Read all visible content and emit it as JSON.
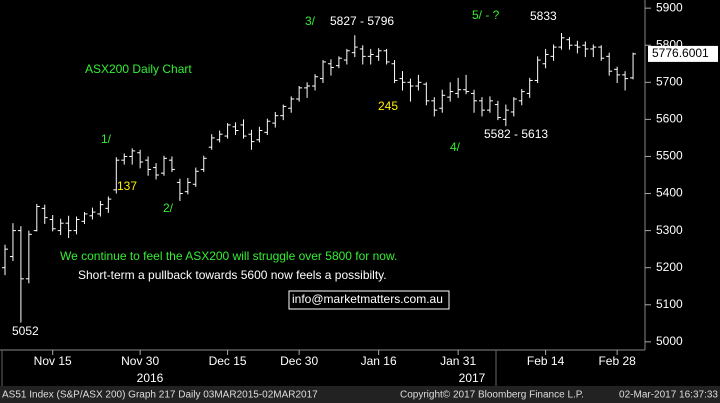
{
  "chart_data": {
    "type": "ohlc",
    "categories": [
      null,
      null,
      null,
      null,
      null,
      null,
      "Nov 15",
      null,
      null,
      null,
      null,
      null,
      null,
      null,
      null,
      null,
      null,
      "Nov 30",
      null,
      null,
      null,
      null,
      null,
      null,
      null,
      null,
      null,
      null,
      "Dec 15",
      null,
      null,
      null,
      null,
      null,
      null,
      null,
      null,
      "Dec 30",
      null,
      null,
      null,
      null,
      null,
      null,
      null,
      null,
      null,
      "Jan 16",
      null,
      null,
      null,
      null,
      null,
      null,
      null,
      null,
      null,
      "Jan 31",
      null,
      null,
      null,
      null,
      null,
      null,
      null,
      null,
      null,
      null,
      "Feb 14",
      null,
      null,
      null,
      null,
      null,
      null,
      null,
      null,
      "Feb 28",
      null,
      null
    ],
    "year_labels": [
      "2016",
      "2017"
    ],
    "open": [
      5200,
      5230,
      5300,
      5170,
      5300,
      5360,
      5330,
      5300,
      5320,
      5300,
      5325,
      5340,
      5345,
      5360,
      5410,
      5490,
      5500,
      5510,
      5490,
      5470,
      5455,
      5490,
      5430,
      5405,
      5425,
      5465,
      5525,
      5545,
      5555,
      5580,
      5585,
      5560,
      5545,
      5565,
      5590,
      5610,
      5630,
      5655,
      5685,
      5690,
      5710,
      5750,
      5745,
      5760,
      5780,
      5790,
      5770,
      5770,
      5785,
      5750,
      5710,
      5700,
      5690,
      5695,
      5650,
      5630,
      5660,
      5670,
      5680,
      5670,
      5650,
      5625,
      5640,
      5600,
      5620,
      5650,
      5670,
      5705,
      5750,
      5770,
      5795,
      5815,
      5800,
      5800,
      5790,
      5795,
      5770,
      5735,
      5720,
      5712
    ],
    "high": [
      5262,
      5320,
      5312,
      5300,
      5372,
      5370,
      5342,
      5332,
      5340,
      5338,
      5350,
      5362,
      5380,
      5392,
      5498,
      5508,
      5522,
      5518,
      5500,
      5482,
      5502,
      5500,
      5440,
      5442,
      5470,
      5502,
      5560,
      5570,
      5590,
      5592,
      5600,
      5572,
      5580,
      5602,
      5620,
      5640,
      5662,
      5690,
      5700,
      5722,
      5760,
      5762,
      5770,
      5790,
      5827,
      5800,
      5790,
      5792,
      5790,
      5760,
      5730,
      5710,
      5720,
      5700,
      5660,
      5680,
      5700,
      5712,
      5720,
      5680,
      5660,
      5662,
      5650,
      5640,
      5660,
      5682,
      5712,
      5770,
      5790,
      5802,
      5833,
      5822,
      5812,
      5810,
      5802,
      5800,
      5780,
      5742,
      5730,
      5780
    ],
    "low": [
      5180,
      5218,
      5052,
      5158,
      5298,
      5318,
      5298,
      5288,
      5280,
      5290,
      5318,
      5330,
      5338,
      5348,
      5400,
      5478,
      5478,
      5468,
      5448,
      5438,
      5448,
      5458,
      5380,
      5398,
      5418,
      5458,
      5518,
      5538,
      5548,
      5558,
      5548,
      5518,
      5538,
      5558,
      5578,
      5598,
      5618,
      5648,
      5658,
      5678,
      5698,
      5718,
      5738,
      5748,
      5768,
      5748,
      5748,
      5758,
      5748,
      5698,
      5678,
      5648,
      5678,
      5638,
      5608,
      5618,
      5648,
      5658,
      5668,
      5618,
      5608,
      5618,
      5598,
      5582,
      5608,
      5638,
      5658,
      5698,
      5738,
      5758,
      5788,
      5788,
      5778,
      5768,
      5768,
      5758,
      5718,
      5698,
      5678,
      5708
    ],
    "close": [
      5250,
      5300,
      5170,
      5290,
      5365,
      5335,
      5305,
      5320,
      5300,
      5330,
      5345,
      5350,
      5370,
      5385,
      5490,
      5500,
      5515,
      5485,
      5465,
      5450,
      5495,
      5465,
      5400,
      5430,
      5460,
      5495,
      5550,
      5560,
      5585,
      5570,
      5555,
      5540,
      5570,
      5595,
      5610,
      5635,
      5655,
      5685,
      5690,
      5715,
      5755,
      5740,
      5765,
      5785,
      5795,
      5770,
      5775,
      5785,
      5755,
      5705,
      5700,
      5690,
      5700,
      5650,
      5625,
      5665,
      5675,
      5680,
      5675,
      5650,
      5625,
      5650,
      5605,
      5625,
      5655,
      5675,
      5705,
      5760,
      5775,
      5795,
      5820,
      5800,
      5795,
      5790,
      5795,
      5765,
      5730,
      5720,
      5710,
      5776.6001
    ],
    "color": "#ffffff",
    "ylim": [
      4978,
      5922
    ],
    "yticks": [
      5000,
      5100,
      5200,
      5300,
      5400,
      5500,
      5600,
      5700,
      5800,
      5900
    ],
    "annotations": [
      {
        "text": "ASX200 Daily Chart",
        "color": "#33ee33"
      },
      {
        "text": "1/",
        "color": "#33ee33"
      },
      {
        "text": "137",
        "color": "#ffee00"
      },
      {
        "text": "2/",
        "color": "#33ee33"
      },
      {
        "text": "3/",
        "color": "#33ee33"
      },
      {
        "text": "5827 - 5796",
        "color": "#ffffff"
      },
      {
        "text": "245",
        "color": "#ffee00"
      },
      {
        "text": "4/",
        "color": "#33ee33"
      },
      {
        "text": "5582 - 5613",
        "color": "#ffffff"
      },
      {
        "text": "5/ - ?",
        "color": "#33ee33"
      },
      {
        "text": "We continue to feel the ASX200 will struggle over 5800 for now.",
        "color": "#33ee33"
      },
      {
        "text": "Short-term a pullback towards 5600 now feels a possibilty.",
        "color": "#ffffff"
      },
      {
        "text": "info@marketmatters.com.au",
        "color": "#ffffff"
      }
    ],
    "footer": [
      "AS51 Index (S&P/ASX 200) Graph 217  Daily 03MAR2015-02MAR2017",
      "Copyright© 2017 Bloomberg Finance L.P.",
      "02-Mar-2017 16:37:33"
    ]
  }
}
